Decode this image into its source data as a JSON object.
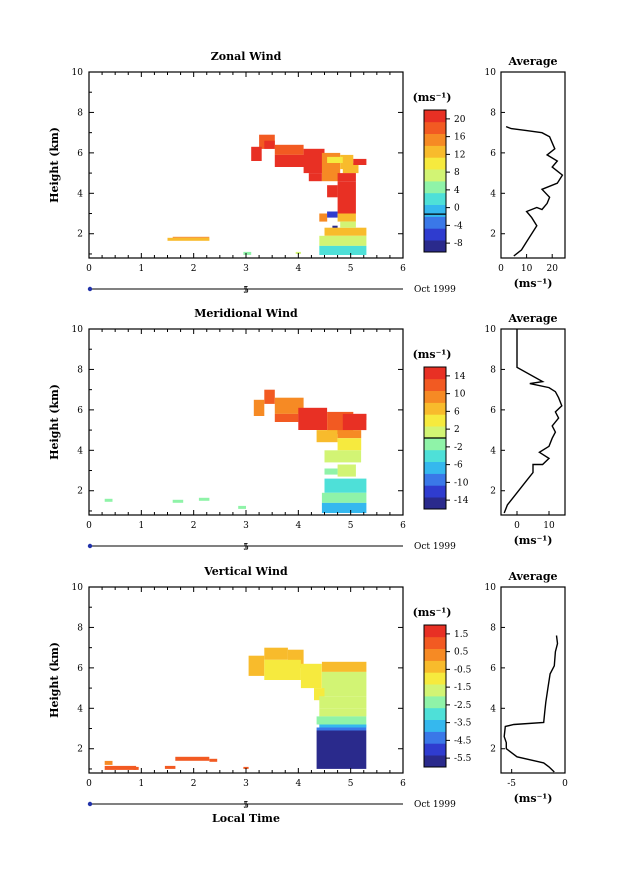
{
  "colorscale": [
    "#2a2a8c",
    "#2f3ccf",
    "#3a78e8",
    "#35b8ee",
    "#4ee0d8",
    "#8ff3a8",
    "#d2f474",
    "#f6ea3e",
    "#f8bb2c",
    "#f68a24",
    "#f25a22",
    "#e83024"
  ],
  "chart_data": [
    {
      "type": "heatmap",
      "title": "Zonal Wind",
      "xlabel": "",
      "ylabel": "Height (km)",
      "xlim": [
        0,
        6
      ],
      "ylim": [
        0.8,
        10
      ],
      "x_ticks": [
        "0",
        "1",
        "2",
        "3",
        "4",
        "5",
        "6"
      ],
      "y_ticks": [
        "2",
        "4",
        "6",
        "8",
        "10"
      ],
      "date_label": "Oct 1999",
      "date_marker": "5",
      "unit": "(ms⁻¹)",
      "colorbar": {
        "min": -8,
        "max": 22,
        "ticks": [
          "20",
          "16",
          "12",
          "8",
          "4",
          "0",
          "-4",
          "-8"
        ],
        "contour_value": 0
      },
      "cells": [
        [
          3.25,
          3.55,
          6.2,
          6.9,
          18
        ],
        [
          3.35,
          3.55,
          6.2,
          6.6,
          20
        ],
        [
          3.1,
          3.3,
          5.6,
          6.3,
          20
        ],
        [
          3.55,
          4.1,
          5.9,
          6.4,
          18
        ],
        [
          3.55,
          4.2,
          5.3,
          5.9,
          22
        ],
        [
          4.1,
          4.5,
          5.0,
          6.2,
          20
        ],
        [
          4.2,
          4.45,
          4.6,
          5.0,
          20
        ],
        [
          4.45,
          4.8,
          4.6,
          6.0,
          16
        ],
        [
          4.8,
          5.05,
          5.2,
          5.9,
          14
        ],
        [
          4.85,
          5.15,
          5.0,
          5.5,
          12
        ],
        [
          5.05,
          5.3,
          5.4,
          5.7,
          20
        ],
        [
          4.55,
          4.85,
          5.5,
          5.8,
          10
        ],
        [
          4.75,
          5.1,
          3.0,
          4.6,
          20
        ],
        [
          4.75,
          5.1,
          4.6,
          5.0,
          22
        ],
        [
          4.55,
          4.75,
          3.8,
          4.4,
          20
        ],
        [
          4.4,
          4.55,
          2.6,
          3.0,
          16
        ],
        [
          4.55,
          4.75,
          2.8,
          3.1,
          -4
        ],
        [
          4.65,
          4.75,
          2.0,
          2.4,
          -8
        ],
        [
          4.75,
          5.1,
          2.6,
          3.0,
          12
        ],
        [
          4.5,
          5.3,
          1.9,
          2.3,
          12
        ],
        [
          4.4,
          5.3,
          1.4,
          1.9,
          8
        ],
        [
          4.4,
          5.3,
          0.95,
          1.4,
          4
        ],
        [
          4.8,
          5.1,
          2.3,
          2.6,
          8
        ],
        [
          1.5,
          2.3,
          1.65,
          1.8,
          12
        ],
        [
          1.6,
          2.3,
          1.8,
          1.85,
          16
        ],
        [
          2.95,
          3.1,
          0.95,
          1.1,
          6
        ],
        [
          3.95,
          4.05,
          1.0,
          1.1,
          8
        ]
      ],
      "average": {
        "title": "Average",
        "xlim": [
          0,
          25
        ],
        "x_ticks": [
          "0",
          "10",
          "20"
        ],
        "unit": "(ms⁻¹)",
        "profile": [
          [
            5,
            0.9
          ],
          [
            8,
            1.2
          ],
          [
            10,
            1.6
          ],
          [
            12,
            2.0
          ],
          [
            14,
            2.4
          ],
          [
            12,
            2.8
          ],
          [
            10,
            3.1
          ],
          [
            14,
            3.3
          ],
          [
            16,
            3.2
          ],
          [
            18,
            3.5
          ],
          [
            19,
            3.8
          ],
          [
            16,
            4.2
          ],
          [
            22,
            4.5
          ],
          [
            24,
            4.9
          ],
          [
            22,
            5.1
          ],
          [
            20,
            5.3
          ],
          [
            22,
            5.6
          ],
          [
            18,
            5.9
          ],
          [
            21,
            6.2
          ],
          [
            20,
            6.5
          ],
          [
            19,
            6.8
          ],
          [
            16,
            7.0
          ],
          [
            10,
            7.1
          ],
          [
            4,
            7.2
          ],
          [
            2,
            7.3
          ]
        ]
      }
    },
    {
      "type": "heatmap",
      "title": "Meridional Wind",
      "xlabel": "",
      "ylabel": "Height (km)",
      "xlim": [
        0,
        6
      ],
      "ylim": [
        0.8,
        10
      ],
      "x_ticks": [
        "0",
        "1",
        "2",
        "3",
        "4",
        "5",
        "6"
      ],
      "y_ticks": [
        "2",
        "4",
        "6",
        "8",
        "10"
      ],
      "date_label": "Oct 1999",
      "date_marker": "5",
      "unit": "(ms⁻¹)",
      "colorbar": {
        "min": -16,
        "max": 16,
        "ticks": [
          "14",
          "10",
          "6",
          "2",
          "-2",
          "-6",
          "-10",
          "-14"
        ],
        "contour_value": 0
      },
      "cells": [
        [
          3.35,
          3.55,
          6.3,
          7.0,
          12
        ],
        [
          3.15,
          3.35,
          5.7,
          6.5,
          8
        ],
        [
          3.55,
          4.1,
          5.8,
          6.6,
          10
        ],
        [
          3.55,
          4.0,
          5.4,
          5.8,
          12
        ],
        [
          4.0,
          4.55,
          5.0,
          6.1,
          14
        ],
        [
          4.55,
          5.05,
          4.8,
          5.9,
          12
        ],
        [
          4.85,
          5.3,
          5.0,
          5.8,
          14
        ],
        [
          5.05,
          5.3,
          5.5,
          5.8,
          14
        ],
        [
          4.35,
          4.75,
          4.4,
          5.0,
          6
        ],
        [
          4.75,
          5.2,
          4.6,
          5.0,
          10
        ],
        [
          4.75,
          5.2,
          4.0,
          4.6,
          4
        ],
        [
          4.5,
          5.2,
          3.4,
          4.0,
          2
        ],
        [
          4.75,
          5.1,
          2.7,
          3.3,
          0
        ],
        [
          4.5,
          4.75,
          2.8,
          3.1,
          -2
        ],
        [
          4.5,
          5.3,
          1.9,
          2.6,
          -4
        ],
        [
          4.45,
          5.3,
          1.4,
          1.9,
          -2
        ],
        [
          4.45,
          5.3,
          0.9,
          1.4,
          -6
        ],
        [
          0.3,
          0.45,
          1.45,
          1.6,
          -2
        ],
        [
          1.6,
          1.8,
          1.4,
          1.55,
          -2
        ],
        [
          2.1,
          2.3,
          1.5,
          1.65,
          -2
        ],
        [
          2.85,
          3.0,
          1.1,
          1.25,
          -2
        ]
      ],
      "average": {
        "title": "Average",
        "xlim": [
          -5,
          15
        ],
        "x_ticks": [
          "0",
          "10"
        ],
        "unit": "(ms⁻¹)",
        "profile": [
          [
            -4,
            0.9
          ],
          [
            -3,
            1.3
          ],
          [
            -1,
            1.7
          ],
          [
            1,
            2.1
          ],
          [
            3,
            2.5
          ],
          [
            5,
            2.9
          ],
          [
            5,
            3.3
          ],
          [
            8,
            3.3
          ],
          [
            10,
            3.6
          ],
          [
            7,
            3.9
          ],
          [
            10,
            4.2
          ],
          [
            11,
            4.6
          ],
          [
            12,
            4.9
          ],
          [
            11,
            5.2
          ],
          [
            13,
            5.6
          ],
          [
            12,
            5.9
          ],
          [
            14,
            6.2
          ],
          [
            13,
            6.6
          ],
          [
            12,
            6.9
          ],
          [
            10,
            7.1
          ],
          [
            4,
            7.3
          ],
          [
            8,
            7.4
          ],
          [
            0,
            8.1
          ],
          [
            0,
            10
          ]
        ]
      }
    },
    {
      "type": "heatmap",
      "title": "Vertical Wind",
      "xlabel": "Local Time",
      "ylabel": "Height (km)",
      "xlim": [
        0,
        6
      ],
      "ylim": [
        0.8,
        10
      ],
      "x_ticks": [
        "0",
        "1",
        "2",
        "3",
        "4",
        "5",
        "6"
      ],
      "y_ticks": [
        "2",
        "4",
        "6",
        "8",
        "10"
      ],
      "date_label": "Oct 1999",
      "date_marker": "5",
      "unit": "(ms⁻¹)",
      "colorbar": {
        "min": -6,
        "max": 2,
        "ticks": [
          "1.5",
          "0.5",
          "-0.5",
          "-1.5",
          "-2.5",
          "-3.5",
          "-4.5",
          "-5.5"
        ]
      },
      "cells": [
        [
          3.35,
          3.8,
          6.4,
          7.0,
          -0.5
        ],
        [
          3.05,
          3.35,
          5.6,
          6.6,
          -0.5
        ],
        [
          3.8,
          4.1,
          6.0,
          6.9,
          -0.5
        ],
        [
          3.35,
          4.05,
          5.4,
          6.4,
          -1
        ],
        [
          4.05,
          4.45,
          5.0,
          6.2,
          -1
        ],
        [
          4.45,
          5.3,
          5.8,
          6.3,
          -0.5
        ],
        [
          4.45,
          5.3,
          4.6,
          5.8,
          -1.5
        ],
        [
          4.3,
          4.5,
          4.4,
          5.0,
          -1
        ],
        [
          4.4,
          5.3,
          4.0,
          4.6,
          -1.5
        ],
        [
          4.4,
          5.3,
          3.6,
          4.0,
          -2
        ],
        [
          4.35,
          5.3,
          3.2,
          3.6,
          -2.5
        ],
        [
          4.4,
          5.3,
          3.05,
          3.2,
          -3.5
        ],
        [
          4.35,
          5.3,
          2.9,
          3.05,
          -4.5
        ],
        [
          4.35,
          5.3,
          1.0,
          2.9,
          -6
        ],
        [
          0.3,
          0.45,
          1.2,
          1.4,
          0.5
        ],
        [
          0.3,
          0.9,
          0.95,
          1.15,
          0.8
        ],
        [
          0.85,
          0.95,
          0.95,
          1.1,
          1
        ],
        [
          1.45,
          1.65,
          1.0,
          1.15,
          1
        ],
        [
          1.65,
          2.3,
          1.4,
          1.6,
          1
        ],
        [
          2.3,
          2.45,
          1.35,
          1.5,
          1
        ],
        [
          2.95,
          3.05,
          1.0,
          1.1,
          1
        ]
      ],
      "average": {
        "title": "Average",
        "xlim": [
          -6,
          0
        ],
        "x_ticks": [
          "-5",
          "0"
        ],
        "unit": "(ms⁻¹)",
        "profile": [
          [
            -1,
            0.85
          ],
          [
            -1.5,
            1.1
          ],
          [
            -2,
            1.3
          ],
          [
            -4.5,
            1.6
          ],
          [
            -5.5,
            2.0
          ],
          [
            -5.5,
            2.3
          ],
          [
            -5.7,
            2.6
          ],
          [
            -5.6,
            3.1
          ],
          [
            -4.8,
            3.2
          ],
          [
            -2,
            3.3
          ],
          [
            -1.9,
            3.8
          ],
          [
            -1.8,
            4.3
          ],
          [
            -1.6,
            5.0
          ],
          [
            -1.4,
            5.7
          ],
          [
            -1.0,
            6.1
          ],
          [
            -0.9,
            6.8
          ],
          [
            -0.7,
            7.2
          ],
          [
            -0.8,
            7.6
          ]
        ]
      }
    }
  ]
}
